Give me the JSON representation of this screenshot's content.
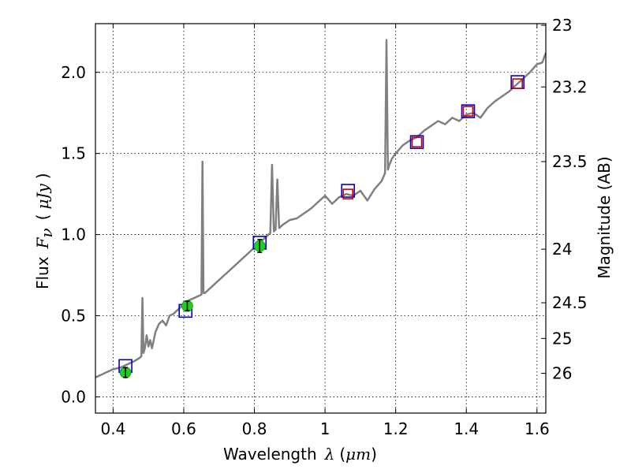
{
  "chart_data": {
    "type": "line",
    "title": "",
    "xlabel": {
      "text": "Wavelength",
      "symbol": "λ",
      "open": "(",
      "unit": "μm",
      "close": ")"
    },
    "ylabel": {
      "text": "Flux",
      "symbol": "F",
      "subscript": "ν",
      "open": "(",
      "unit": "μJy",
      "close": ")"
    },
    "y2label": "Magnitude (AB)",
    "xlim": [
      0.35,
      1.625
    ],
    "ylim": [
      -0.1,
      2.3
    ],
    "grid": true,
    "x_ticks": [
      {
        "value": 0.4,
        "label": "0.4"
      },
      {
        "value": 0.6,
        "label": "0.6"
      },
      {
        "value": 0.8,
        "label": "0.8"
      },
      {
        "value": 1.0,
        "label": "1"
      },
      {
        "value": 1.2,
        "label": "1.2"
      },
      {
        "value": 1.4,
        "label": "1.4"
      },
      {
        "value": 1.6,
        "label": "1.6"
      }
    ],
    "y_ticks": [
      {
        "value": 0.0,
        "label": "0.0"
      },
      {
        "value": 0.5,
        "label": "0.5"
      },
      {
        "value": 1.0,
        "label": "1.0"
      },
      {
        "value": 1.5,
        "label": "1.5"
      },
      {
        "value": 2.0,
        "label": "2.0"
      }
    ],
    "y2_ticks": [
      {
        "label": "23",
        "flux": 2.29
      },
      {
        "label": "23.2",
        "flux": 1.91
      },
      {
        "label": "23.5",
        "flux": 1.45
      },
      {
        "label": "24",
        "flux": 0.91
      },
      {
        "label": "24.5",
        "flux": 0.58
      },
      {
        "label": "25",
        "flux": 0.36
      },
      {
        "label": "26",
        "flux": 0.145
      }
    ],
    "series": [
      {
        "name": "model spectrum",
        "kind": "line",
        "color": "#808080",
        "x": [
          0.35,
          0.36,
          0.37,
          0.38,
          0.39,
          0.4,
          0.42,
          0.44,
          0.46,
          0.475,
          0.48,
          0.483,
          0.486,
          0.49,
          0.495,
          0.5,
          0.505,
          0.51,
          0.52,
          0.53,
          0.54,
          0.55,
          0.56,
          0.57,
          0.58,
          0.59,
          0.6,
          0.62,
          0.64,
          0.65,
          0.653,
          0.656,
          0.66,
          0.67,
          0.68,
          0.7,
          0.72,
          0.74,
          0.76,
          0.78,
          0.8,
          0.82,
          0.84,
          0.845,
          0.85,
          0.855,
          0.86,
          0.865,
          0.87,
          0.875,
          0.88,
          0.9,
          0.92,
          0.94,
          0.96,
          0.97,
          0.98,
          1.0,
          1.02,
          1.04,
          1.06,
          1.08,
          1.1,
          1.12,
          1.14,
          1.16,
          1.17,
          1.174,
          1.178,
          1.182,
          1.19,
          1.2,
          1.22,
          1.24,
          1.26,
          1.28,
          1.3,
          1.32,
          1.34,
          1.36,
          1.38,
          1.4,
          1.42,
          1.44,
          1.46,
          1.48,
          1.5,
          1.52,
          1.54,
          1.56,
          1.58,
          1.6,
          1.615,
          1.625
        ],
        "y": [
          0.12,
          0.13,
          0.14,
          0.15,
          0.16,
          0.17,
          0.18,
          0.2,
          0.22,
          0.24,
          0.25,
          0.61,
          0.27,
          0.3,
          0.38,
          0.31,
          0.35,
          0.3,
          0.4,
          0.45,
          0.47,
          0.44,
          0.5,
          0.51,
          0.53,
          0.55,
          0.58,
          0.6,
          0.62,
          0.63,
          1.45,
          0.64,
          0.64,
          0.66,
          0.68,
          0.72,
          0.76,
          0.8,
          0.84,
          0.88,
          0.92,
          0.96,
          1.0,
          1.01,
          1.43,
          1.02,
          1.03,
          1.34,
          1.04,
          1.05,
          1.06,
          1.09,
          1.1,
          1.13,
          1.16,
          1.18,
          1.2,
          1.24,
          1.19,
          1.23,
          1.25,
          1.24,
          1.27,
          1.21,
          1.28,
          1.33,
          1.38,
          2.2,
          1.4,
          1.43,
          1.47,
          1.5,
          1.55,
          1.58,
          1.6,
          1.64,
          1.67,
          1.7,
          1.68,
          1.72,
          1.7,
          1.74,
          1.75,
          1.72,
          1.78,
          1.82,
          1.85,
          1.88,
          1.92,
          1.96,
          2.0,
          2.05,
          2.06,
          2.12
        ]
      },
      {
        "name": "photometry (blue squares)",
        "kind": "square",
        "color": "#0000cc",
        "x": [
          0.435,
          0.605,
          0.815,
          1.065,
          1.26,
          1.405,
          1.545
        ],
        "y": [
          0.19,
          0.53,
          0.95,
          1.27,
          1.57,
          1.76,
          1.94
        ]
      },
      {
        "name": "model photometry (red squares)",
        "kind": "square",
        "color": "#cc0000",
        "x": [
          1.065,
          1.26,
          1.405,
          1.545
        ],
        "y": [
          1.25,
          1.57,
          1.76,
          1.93
        ]
      },
      {
        "name": "observed (green points)",
        "kind": "errorbar",
        "color": "#22cc22",
        "x": [
          0.435,
          0.61,
          0.815
        ],
        "y": [
          0.15,
          0.56,
          0.93
        ],
        "err": [
          0.03,
          0.03,
          0.04
        ]
      }
    ]
  }
}
